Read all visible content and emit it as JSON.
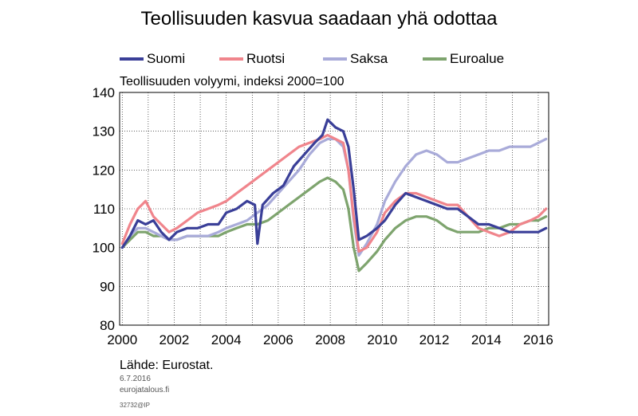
{
  "title": "Teollisuuden kasvua saadaan yhä odottaa",
  "subtitle": "Teollisuuden volyymi, indeksi 2000=100",
  "source": "Lähde: Eurostat.",
  "date": "6.7.2016",
  "site": "eurojatalous.fi",
  "code": "32732@IP",
  "colors": {
    "Suomi": "#3a3f98",
    "Ruotsi": "#f0858c",
    "Saksa": "#a9abd9",
    "Euroalue": "#7ea46e"
  },
  "chart_data": {
    "type": "line",
    "title": "Teollisuuden kasvua saadaan yhä odottaa",
    "ylabel": "Teollisuuden volyymi, indeksi 2000=100",
    "ylim": [
      80,
      140
    ],
    "xlim": [
      1999.9,
      2016.4
    ],
    "yticks": [
      80,
      90,
      100,
      110,
      120,
      130,
      140
    ],
    "xticks": [
      "2000",
      "2002",
      "2004",
      "2006",
      "2008",
      "2010",
      "2012",
      "2014",
      "2016"
    ],
    "grid": true,
    "legend": "top",
    "series": [
      {
        "name": "Suomi",
        "x": [
          2000.0,
          2000.3,
          2000.6,
          2000.9,
          2001.2,
          2001.5,
          2001.8,
          2002.1,
          2002.5,
          2002.9,
          2003.3,
          2003.7,
          2004.0,
          2004.4,
          2004.8,
          2005.1,
          2005.2,
          2005.4,
          2005.8,
          2006.2,
          2006.6,
          2007.0,
          2007.4,
          2007.7,
          2007.9,
          2008.2,
          2008.5,
          2008.7,
          2008.9,
          2009.1,
          2009.4,
          2009.8,
          2010.1,
          2010.5,
          2010.9,
          2011.3,
          2011.7,
          2012.1,
          2012.5,
          2012.9,
          2013.3,
          2013.7,
          2014.1,
          2014.5,
          2014.9,
          2015.3,
          2015.7,
          2016.0,
          2016.3
        ],
        "values": [
          100,
          103,
          107,
          106,
          107,
          104,
          102,
          104,
          105,
          105,
          106,
          106,
          109,
          110,
          112,
          111,
          101,
          111,
          114,
          116,
          121,
          124,
          127,
          129,
          133,
          131,
          130,
          126,
          115,
          102,
          103,
          105,
          107,
          111,
          114,
          113,
          112,
          111,
          110,
          110,
          108,
          106,
          106,
          105,
          104,
          104,
          104,
          104,
          105
        ]
      },
      {
        "name": "Ruotsi",
        "x": [
          2000.0,
          2000.3,
          2000.6,
          2000.9,
          2001.2,
          2001.5,
          2001.8,
          2002.1,
          2002.5,
          2002.9,
          2003.3,
          2003.7,
          2004.0,
          2004.4,
          2004.8,
          2005.2,
          2005.6,
          2006.0,
          2006.4,
          2006.8,
          2007.2,
          2007.6,
          2007.9,
          2008.2,
          2008.5,
          2008.7,
          2008.9,
          2009.1,
          2009.4,
          2009.8,
          2010.1,
          2010.5,
          2010.9,
          2011.3,
          2011.7,
          2012.1,
          2012.5,
          2012.9,
          2013.3,
          2013.7,
          2014.1,
          2014.5,
          2014.9,
          2015.3,
          2015.7,
          2016.0,
          2016.3
        ],
        "values": [
          101,
          106,
          110,
          112,
          108,
          106,
          104,
          105,
          107,
          109,
          110,
          111,
          112,
          114,
          116,
          118,
          120,
          122,
          124,
          126,
          127,
          128,
          129,
          128,
          127,
          120,
          108,
          99,
          100,
          104,
          109,
          112,
          114,
          114,
          113,
          112,
          111,
          111,
          108,
          105,
          104,
          103,
          104,
          106,
          107,
          108,
          110
        ]
      },
      {
        "name": "Saksa",
        "x": [
          2000.0,
          2000.3,
          2000.6,
          2000.9,
          2001.2,
          2001.5,
          2001.8,
          2002.1,
          2002.5,
          2002.9,
          2003.3,
          2003.7,
          2004.0,
          2004.4,
          2004.8,
          2005.2,
          2005.6,
          2006.0,
          2006.4,
          2006.8,
          2007.2,
          2007.6,
          2007.9,
          2008.2,
          2008.5,
          2008.7,
          2008.9,
          2009.1,
          2009.4,
          2009.8,
          2010.1,
          2010.5,
          2010.9,
          2011.3,
          2011.7,
          2012.1,
          2012.5,
          2012.9,
          2013.3,
          2013.7,
          2014.1,
          2014.5,
          2014.9,
          2015.3,
          2015.7,
          2016.0,
          2016.3
        ],
        "values": [
          100,
          103,
          105,
          105,
          104,
          103,
          102,
          102,
          103,
          103,
          103,
          104,
          105,
          106,
          107,
          109,
          111,
          114,
          117,
          120,
          124,
          127,
          128,
          128,
          126,
          120,
          107,
          98,
          101,
          106,
          112,
          117,
          121,
          124,
          125,
          124,
          122,
          122,
          123,
          124,
          125,
          125,
          126,
          126,
          126,
          127,
          128
        ]
      },
      {
        "name": "Euroalue",
        "x": [
          2000.0,
          2000.3,
          2000.6,
          2000.9,
          2001.2,
          2001.5,
          2001.8,
          2002.1,
          2002.5,
          2002.9,
          2003.3,
          2003.7,
          2004.0,
          2004.4,
          2004.8,
          2005.2,
          2005.6,
          2006.0,
          2006.4,
          2006.8,
          2007.2,
          2007.6,
          2007.9,
          2008.2,
          2008.5,
          2008.7,
          2008.9,
          2009.1,
          2009.4,
          2009.8,
          2010.1,
          2010.5,
          2010.9,
          2011.3,
          2011.7,
          2012.1,
          2012.5,
          2012.9,
          2013.3,
          2013.7,
          2014.1,
          2014.5,
          2014.9,
          2015.3,
          2015.7,
          2016.0,
          2016.3
        ],
        "values": [
          100,
          102,
          104,
          104,
          103,
          103,
          102,
          102,
          103,
          103,
          103,
          103,
          104,
          105,
          106,
          106,
          107,
          109,
          111,
          113,
          115,
          117,
          118,
          117,
          115,
          110,
          100,
          94,
          96,
          99,
          102,
          105,
          107,
          108,
          108,
          107,
          105,
          104,
          104,
          104,
          105,
          105,
          106,
          106,
          107,
          107,
          108
        ]
      }
    ]
  }
}
